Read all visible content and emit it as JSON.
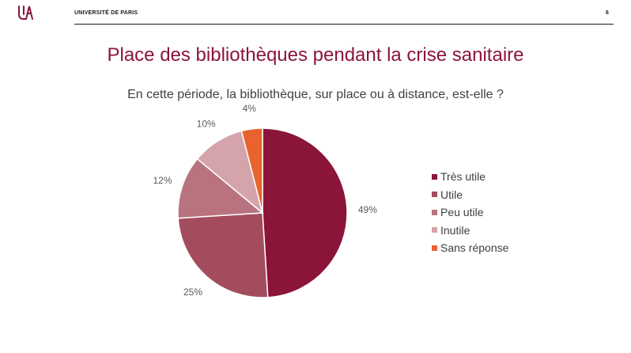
{
  "header": {
    "university": "UNIVERSITÉ DE PARIS",
    "page_number": "6",
    "logo_color": "#8b1538"
  },
  "title": "Place des bibliothèques pendant la crise sanitaire",
  "subtitle": "En cette période, la bibliothèque, sur place ou à distance, est-elle ?",
  "chart_data": {
    "type": "pie",
    "title": "",
    "categories": [
      "Très utile",
      "Utile",
      "Peu utile",
      "Inutile",
      "Sans réponse"
    ],
    "values": [
      49,
      25,
      12,
      10,
      4
    ],
    "labels": [
      "49%",
      "25%",
      "12%",
      "10%",
      "4%"
    ],
    "colors": [
      "#8b1538",
      "#a34c5e",
      "#b9737f",
      "#d5a4ab",
      "#e8632d"
    ],
    "start": "12 o'clock",
    "direction": "clockwise",
    "legend_position": "right"
  }
}
